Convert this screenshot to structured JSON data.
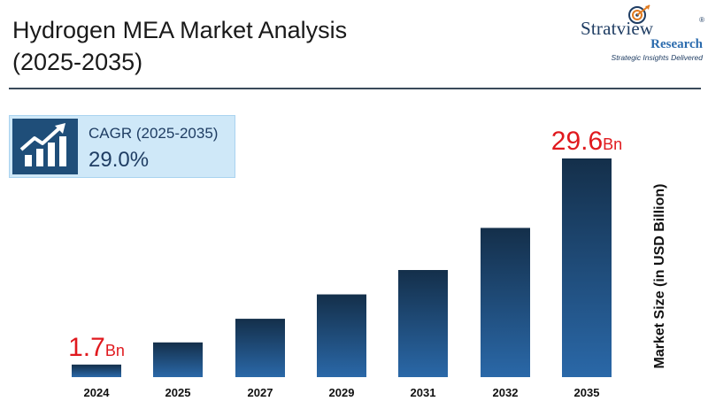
{
  "header": {
    "title_line1": "Hydrogen MEA Market Analysis",
    "title_line2": "(2025-2035)"
  },
  "logo": {
    "name": "Stratview",
    "registered": "®",
    "research": "Research",
    "tagline": "Strategic Insights Delivered",
    "icon": "target-arrow-icon"
  },
  "cagr": {
    "label": "CAGR (2025-2035)",
    "value": "29.0%",
    "icon": "growth-chart-icon"
  },
  "colors": {
    "bar_top": "#142f4a",
    "bar_bottom": "#2a68a8",
    "highlight_text": "#e0191e",
    "accent": "#1f4e79"
  },
  "chart_data": {
    "type": "bar",
    "categories": [
      "2024",
      "2025",
      "2027",
      "2029",
      "2031",
      "2032",
      "2035"
    ],
    "values": [
      1.7,
      4.7,
      7.9,
      11.2,
      14.5,
      20.2,
      29.6
    ],
    "ylabel": "Market Size (in USD Billion)",
    "ylim": [
      0,
      29.6
    ],
    "grid": false,
    "annotations": [
      {
        "category": "2024",
        "number": "1.7",
        "unit": "Bn"
      },
      {
        "category": "2035",
        "number": "29.6",
        "unit": "Bn"
      }
    ]
  }
}
